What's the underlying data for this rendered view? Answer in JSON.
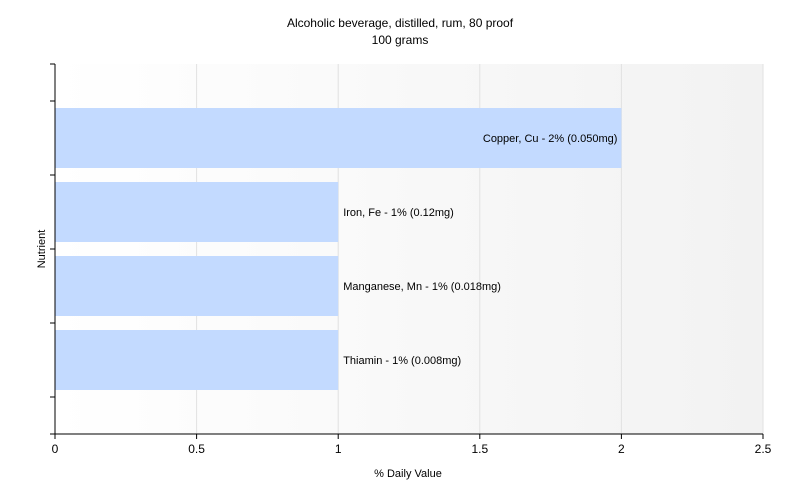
{
  "chart_data": {
    "type": "bar",
    "orientation": "horizontal",
    "title": "Alcoholic beverage, distilled, rum, 80 proof",
    "subtitle": "100 grams",
    "xlabel": "% Daily Value",
    "ylabel": "Nutrient",
    "xlim": [
      0,
      2.5
    ],
    "xticks": [
      "0",
      "0.5",
      "1",
      "1.5",
      "2",
      "2.5"
    ],
    "grid": true,
    "legend": "none",
    "bar_color": "#c3daff",
    "categories": [
      "Copper, Cu",
      "Iron, Fe",
      "Manganese, Mn",
      "Thiamin"
    ],
    "values": [
      2,
      1,
      1,
      1
    ],
    "bar_labels": [
      "Copper, Cu - 2% (0.050mg)",
      "Iron, Fe - 1% (0.12mg)",
      "Manganese, Mn - 1% (0.018mg)",
      "Thiamin - 1% (0.008mg)"
    ]
  }
}
